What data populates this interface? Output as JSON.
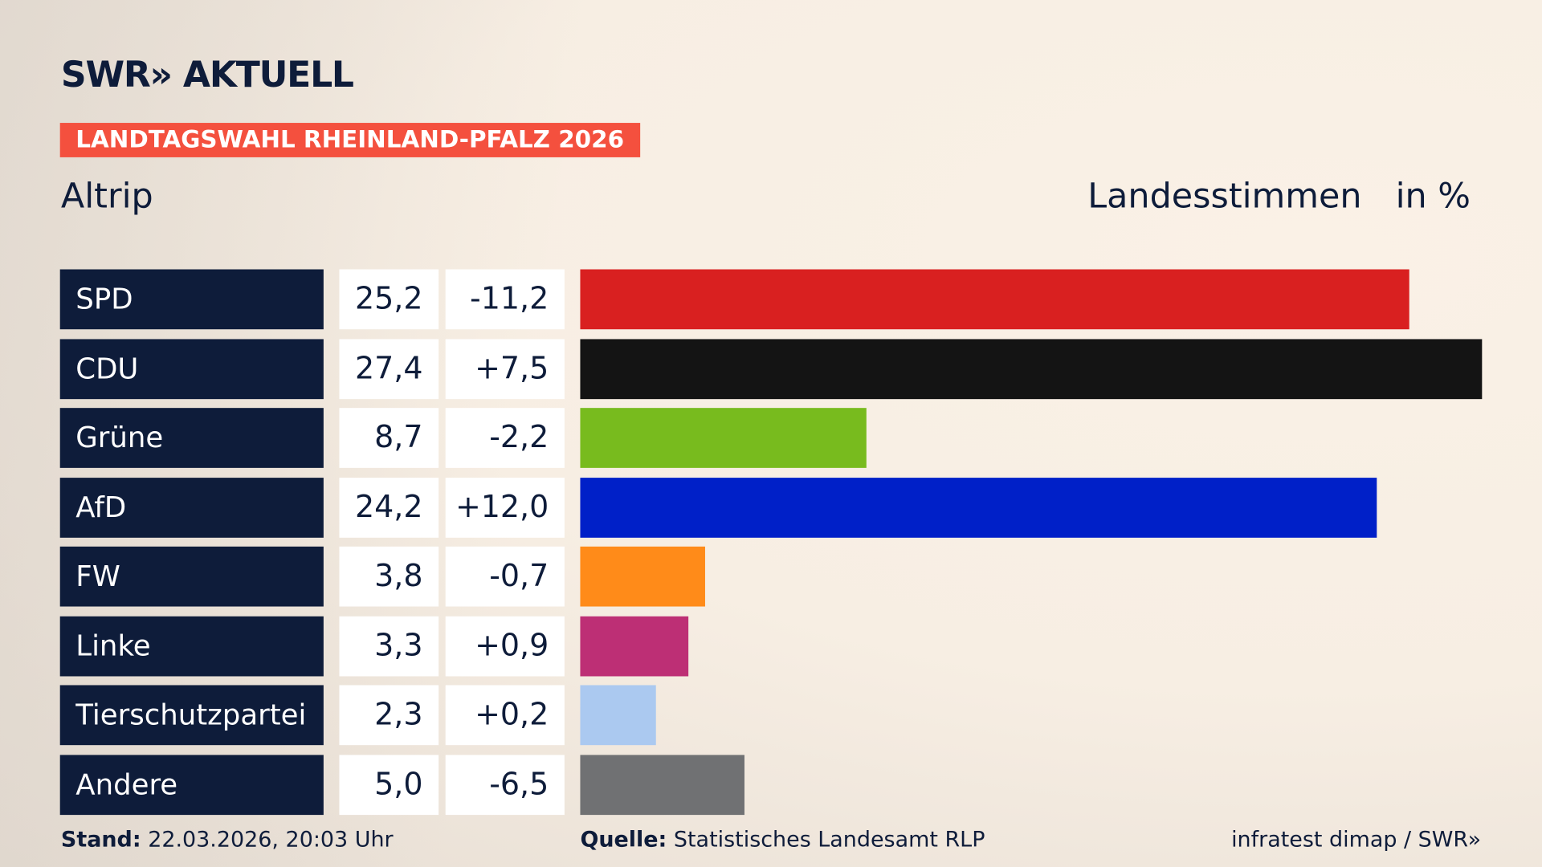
{
  "header": {
    "logo": "SWR» AKTUELL",
    "badge": "LANDTAGSWAHL RHEINLAND-PFALZ 2026",
    "region": "Altrip",
    "measure": "Landesstimmen",
    "unit": "in %"
  },
  "chart_data": {
    "type": "bar",
    "orientation": "horizontal",
    "xlim": [
      0,
      27.4
    ],
    "categories": [
      "SPD",
      "CDU",
      "Grüne",
      "AfD",
      "FW",
      "Linke",
      "Tierschutzpartei",
      "Andere"
    ],
    "values": [
      25.2,
      27.4,
      8.7,
      24.2,
      3.8,
      3.3,
      2.3,
      5.0
    ],
    "value_labels": [
      "25,2",
      "27,4",
      "8,7",
      "24,2",
      "3,8",
      "3,3",
      "2,3",
      "5,0"
    ],
    "diff_labels": [
      "-11,2",
      "+7,5",
      "-2,2",
      "+12,0",
      "-0,7",
      "+0,9",
      "+0,2",
      "-6,5"
    ],
    "colors": [
      "#d92020",
      "#141414",
      "#78bb1e",
      "#0020c8",
      "#ff8b19",
      "#bd2f75",
      "#abc9f0",
      "#707173"
    ]
  },
  "footer": {
    "stand_label": "Stand:",
    "stand": "22.03.2026, 20:03 Uhr",
    "source_label": "Quelle:",
    "source": "Statistisches Landesamt RLP",
    "credit": "infratest dimap / SWR»"
  }
}
